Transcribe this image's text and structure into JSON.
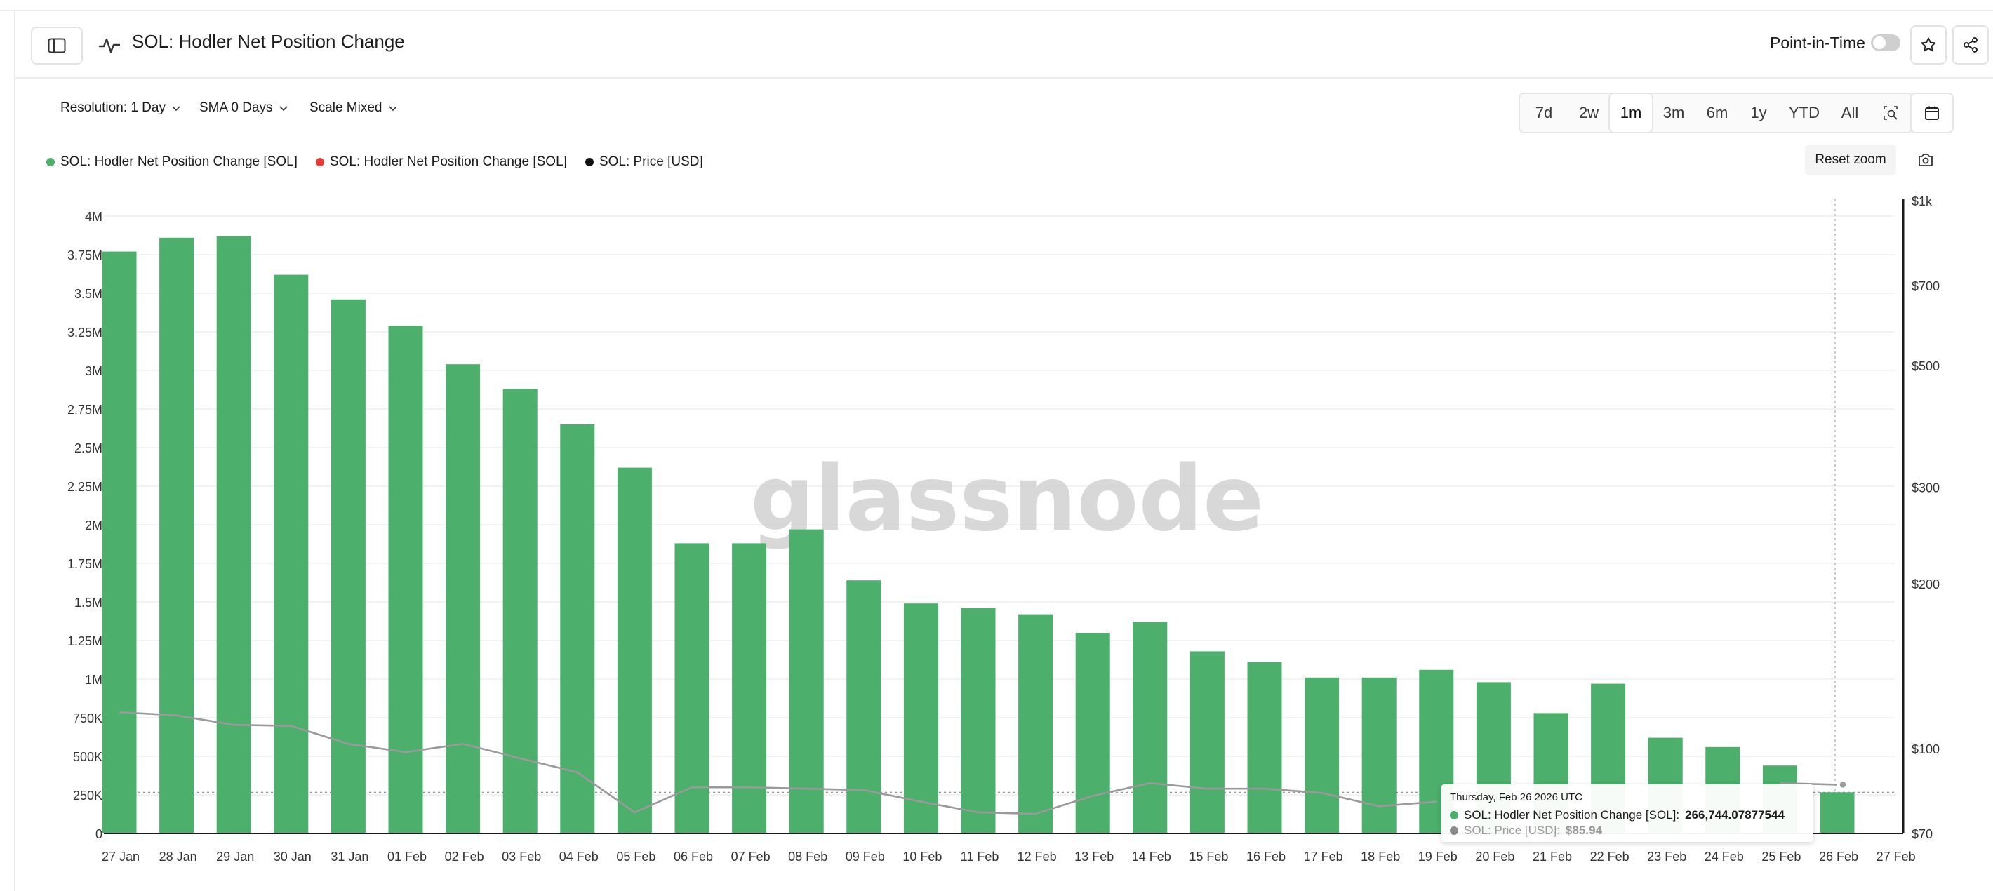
{
  "header": {
    "title": "SOL: Hodler Net Position Change",
    "point_in_time_label": "Point-in-Time"
  },
  "controls": {
    "resolution": "Resolution: 1 Day",
    "sma": "SMA 0 Days",
    "scale": "Scale Mixed"
  },
  "ranges": [
    "7d",
    "2w",
    "1m",
    "3m",
    "6m",
    "1y",
    "YTD",
    "All"
  ],
  "active_range": "1m",
  "legend": [
    {
      "label": "SOL: Hodler Net Position Change [SOL]",
      "color": "#4caf6b"
    },
    {
      "label": "SOL: Hodler Net Position Change [SOL]",
      "color": "#e53935"
    },
    {
      "label": "SOL: Price [USD]",
      "color": "#111111"
    }
  ],
  "reset_zoom": "Reset zoom",
  "watermark": "glassnode",
  "tooltip": {
    "date": "Thursday, Feb 26 2026 UTC",
    "series1_label": "SOL: Hodler Net Position Change [SOL]:",
    "series1_value": "266,744.07877544",
    "series2_label": "SOL: Price [USD]:",
    "series2_value": "$85.94"
  },
  "colors": {
    "bar": "#4caf6b",
    "price_line": "#9a9a9a",
    "grid": "#efefef"
  },
  "chart_data": {
    "type": "bar",
    "categories": [
      "27 Jan",
      "28 Jan",
      "29 Jan",
      "30 Jan",
      "31 Jan",
      "01 Feb",
      "02 Feb",
      "03 Feb",
      "04 Feb",
      "05 Feb",
      "06 Feb",
      "07 Feb",
      "08 Feb",
      "09 Feb",
      "10 Feb",
      "11 Feb",
      "12 Feb",
      "13 Feb",
      "14 Feb",
      "15 Feb",
      "16 Feb",
      "17 Feb",
      "18 Feb",
      "19 Feb",
      "20 Feb",
      "21 Feb",
      "22 Feb",
      "23 Feb",
      "24 Feb",
      "25 Feb",
      "26 Feb",
      "27 Feb"
    ],
    "series": [
      {
        "name": "SOL: Hodler Net Position Change [SOL]",
        "axis": "left",
        "values": [
          3770000,
          3860000,
          3870000,
          3620000,
          3460000,
          3290000,
          3040000,
          2880000,
          2650000,
          2370000,
          1880000,
          1880000,
          1970000,
          1640000,
          1490000,
          1460000,
          1420000,
          1300000,
          1370000,
          1180000,
          1110000,
          1010000,
          1010000,
          1060000,
          980000,
          780000,
          970000,
          620000,
          560000,
          440000,
          266744,
          null
        ]
      },
      {
        "name": "SOL: Price [USD]",
        "axis": "right",
        "type": "line",
        "values": [
          116.5,
          115.0,
          110.5,
          110.0,
          102.0,
          98.5,
          102.0,
          96.0,
          90.5,
          76.5,
          85.0,
          85.0,
          84.5,
          84.0,
          80.0,
          76.5,
          76.0,
          82.0,
          86.5,
          84.5,
          84.5,
          83.0,
          78.5,
          80.0,
          null,
          null,
          null,
          null,
          null,
          86.5,
          85.94,
          null
        ]
      }
    ],
    "y_left": {
      "ticks": [
        0,
        250000,
        500000,
        750000,
        1000000,
        1250000,
        1500000,
        1750000,
        2000000,
        2250000,
        2500000,
        2750000,
        3000000,
        3250000,
        3500000,
        3750000,
        4000000
      ],
      "tick_labels": [
        "0",
        "250K",
        "500K",
        "750K",
        "1M",
        "1.25M",
        "1.5M",
        "1.75M",
        "2M",
        "2.25M",
        "2.5M",
        "2.75M",
        "3M",
        "3.25M",
        "3.5M",
        "3.75M",
        "4M"
      ],
      "range": [
        0,
        4000000
      ]
    },
    "y_right": {
      "scale": "log",
      "range": [
        70,
        1000
      ],
      "ticks": [
        70,
        100,
        200,
        300,
        500,
        700,
        1000
      ],
      "tick_labels": [
        "$70",
        "$100",
        "$200",
        "$300",
        "$500",
        "$700",
        "$1k"
      ]
    },
    "grid": true,
    "legend_position": "top-left"
  }
}
